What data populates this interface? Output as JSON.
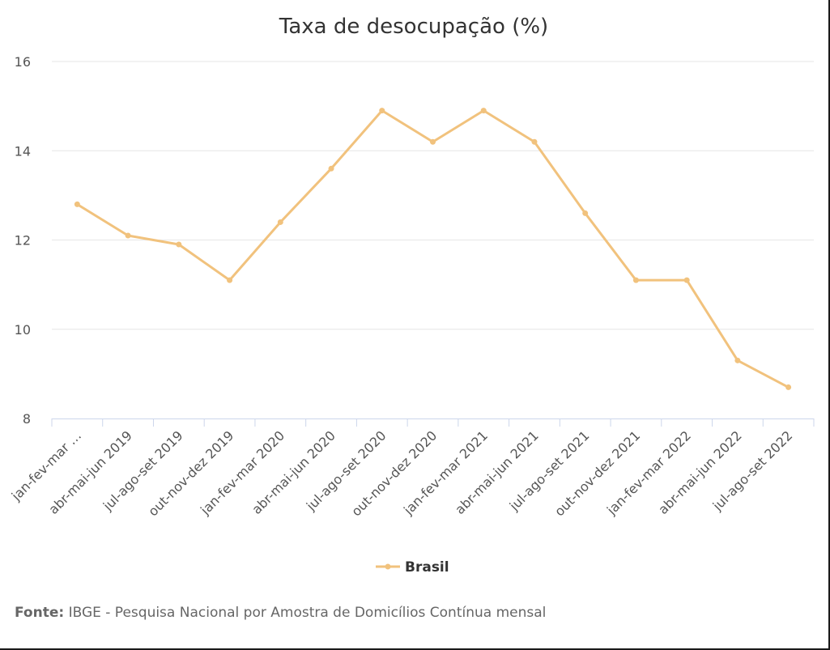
{
  "chart_data": {
    "type": "line",
    "title": "Taxa de desocupação (%)",
    "categories": [
      "jan-fev-mar …",
      "abr-mai-jun 2019",
      "jul-ago-set 2019",
      "out-nov-dez 2019",
      "jan-fev-mar 2020",
      "abr-mai-jun 2020",
      "jul-ago-set 2020",
      "out-nov-dez 2020",
      "jan-fev-mar 2021",
      "abr-mai-jun 2021",
      "jul-ago-set 2021",
      "out-nov-dez 2021",
      "jan-fev-mar 2022",
      "abr-mai-jun 2022",
      "jul-ago-set 2022"
    ],
    "series": [
      {
        "name": "Brasil",
        "color": "#f1c27d",
        "values": [
          12.8,
          12.1,
          11.9,
          11.1,
          12.4,
          13.6,
          14.9,
          14.2,
          14.9,
          14.2,
          12.6,
          11.1,
          11.1,
          9.3,
          8.7
        ]
      }
    ],
    "ylim": [
      8,
      16
    ],
    "yticks": [
      "8",
      "10",
      "12",
      "14",
      "16"
    ],
    "xlabel": "",
    "ylabel": "",
    "grid": true,
    "legend_position": "bottom-center"
  },
  "source": {
    "label": "Fonte:",
    "text": "IBGE - Pesquisa Nacional por Amostra de Domicílios Contínua mensal"
  }
}
